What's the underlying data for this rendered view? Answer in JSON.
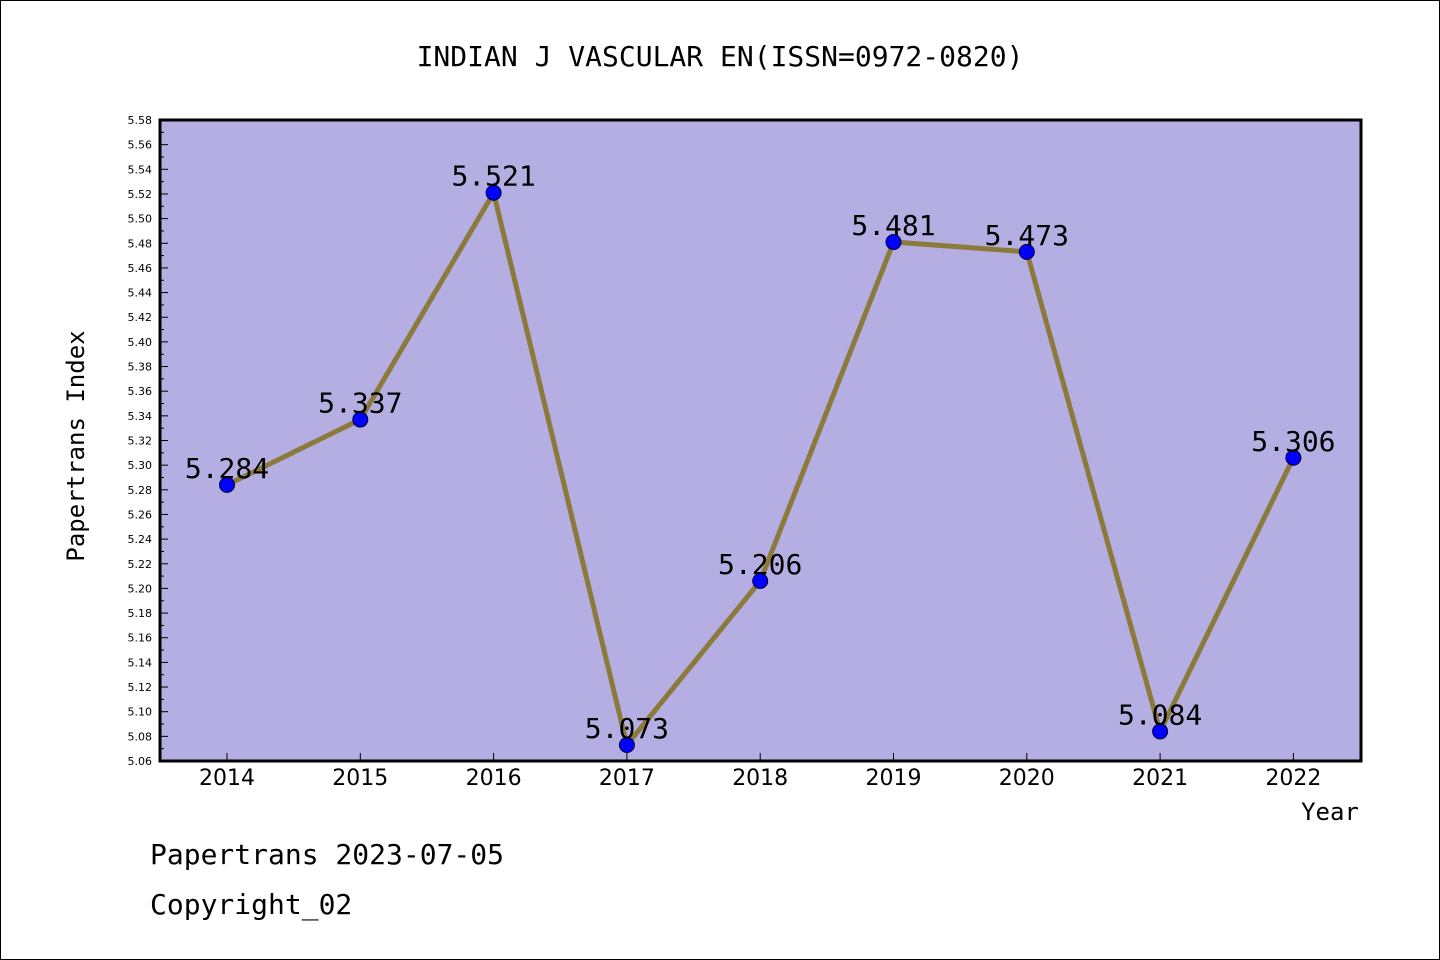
{
  "chart_data": {
    "type": "line",
    "title": "INDIAN J VASCULAR EN(ISSN=0972-0820)",
    "xlabel": "Year",
    "ylabel": "Papertrans Index",
    "categories": [
      "2014",
      "2015",
      "2016",
      "2017",
      "2018",
      "2019",
      "2020",
      "2021",
      "2022"
    ],
    "values": [
      5.284,
      5.337,
      5.521,
      5.073,
      5.206,
      5.481,
      5.473,
      5.084,
      5.306
    ],
    "data_labels": [
      "5.284",
      "5.337",
      "5.521",
      "5.073",
      "5.206",
      "5.481",
      "5.473",
      "5.084",
      "5.306"
    ],
    "ylim": [
      5.06,
      5.58
    ],
    "yticks": [
      "5.06",
      "5.08",
      "5.10",
      "5.12",
      "5.14",
      "5.16",
      "5.18",
      "5.20",
      "5.22",
      "5.24",
      "5.26",
      "5.28",
      "5.30",
      "5.32",
      "5.34",
      "5.36",
      "5.38",
      "5.40",
      "5.42",
      "5.44",
      "5.46",
      "5.48",
      "5.50",
      "5.52",
      "5.54",
      "5.56",
      "5.58"
    ],
    "grid": false,
    "colors": {
      "plot_background": "#b4aee2",
      "line": "#8b7a3a",
      "marker": "#0000ff"
    }
  },
  "footer": {
    "line1": "Papertrans 2023-07-05",
    "line2": "Copyright_02"
  }
}
